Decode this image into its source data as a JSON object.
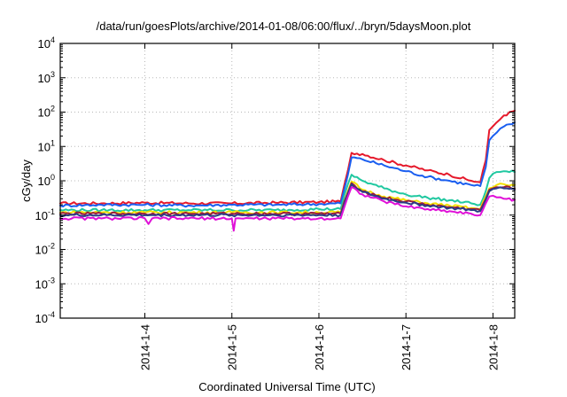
{
  "chart_data": {
    "type": "line",
    "title": "/data/run/goesPlots/archive/2014-01-08/06:00/flux/../bryn/5daysMoon.plot",
    "xlabel": "Coordinated Universal Time (UTC)",
    "ylabel": "cGy/day",
    "yscale": "log",
    "ylim": [
      0.0001,
      10000
    ],
    "xlim": [
      "2014-01-03T00:40",
      "2014-01-08T06:00"
    ],
    "y_ticks": [
      {
        "value": 0.0001,
        "base": "10",
        "exp": "-4"
      },
      {
        "value": 0.001,
        "base": "10",
        "exp": "-3"
      },
      {
        "value": 0.01,
        "base": "10",
        "exp": "-2"
      },
      {
        "value": 0.1,
        "base": "10",
        "exp": "-1"
      },
      {
        "value": 1,
        "base": "10",
        "exp": "0"
      },
      {
        "value": 10,
        "base": "10",
        "exp": "1"
      },
      {
        "value": 100,
        "base": "10",
        "exp": "2"
      },
      {
        "value": 1000,
        "base": "10",
        "exp": "3"
      },
      {
        "value": 10000,
        "base": "10",
        "exp": "4"
      }
    ],
    "x_ticks": [
      {
        "label": "2014-1-4",
        "value": "2014-01-04T00:00"
      },
      {
        "label": "2014-1-5",
        "value": "2014-01-05T00:00"
      },
      {
        "label": "2014-1-6",
        "value": "2014-01-06T00:00"
      },
      {
        "label": "2014-1-7",
        "value": "2014-01-07T00:00"
      },
      {
        "label": "2014-1-8",
        "value": "2014-01-08T00:00"
      }
    ],
    "grid": true,
    "legend": "none",
    "series": [
      {
        "color": "#e6192b",
        "points": [
          [
            "2014-01-03T00:40",
            0.22
          ],
          [
            "2014-01-03T12:00",
            0.22
          ],
          [
            "2014-01-04T00:00",
            0.23
          ],
          [
            "2014-01-04T12:00",
            0.22
          ],
          [
            "2014-01-05T00:00",
            0.22
          ],
          [
            "2014-01-05T12:00",
            0.23
          ],
          [
            "2014-01-06T00:00",
            0.24
          ],
          [
            "2014-01-06T06:00",
            0.25
          ],
          [
            "2014-01-06T08:00",
            2.0
          ],
          [
            "2014-01-06T09:00",
            6.5
          ],
          [
            "2014-01-06T12:00",
            6.0
          ],
          [
            "2014-01-06T18:00",
            4.0
          ],
          [
            "2014-01-07T00:00",
            2.8
          ],
          [
            "2014-01-07T06:00",
            2.0
          ],
          [
            "2014-01-07T12:00",
            1.5
          ],
          [
            "2014-01-07T18:00",
            1.0
          ],
          [
            "2014-01-07T20:30",
            0.9
          ],
          [
            "2014-01-07T22:00",
            4.0
          ],
          [
            "2014-01-07T23:00",
            30
          ],
          [
            "2014-01-08T01:00",
            50
          ],
          [
            "2014-01-08T03:00",
            80
          ],
          [
            "2014-01-08T06:00",
            110
          ]
        ]
      },
      {
        "color": "#1a5ef0",
        "points": [
          [
            "2014-01-03T00:40",
            0.19
          ],
          [
            "2014-01-03T12:00",
            0.2
          ],
          [
            "2014-01-04T00:00",
            0.2
          ],
          [
            "2014-01-04T12:00",
            0.19
          ],
          [
            "2014-01-05T00:00",
            0.2
          ],
          [
            "2014-01-05T12:00",
            0.2
          ],
          [
            "2014-01-06T00:00",
            0.21
          ],
          [
            "2014-01-06T06:00",
            0.22
          ],
          [
            "2014-01-06T08:00",
            1.5
          ],
          [
            "2014-01-06T09:00",
            4.8
          ],
          [
            "2014-01-06T12:00",
            4.2
          ],
          [
            "2014-01-06T18:00",
            2.8
          ],
          [
            "2014-01-07T00:00",
            1.9
          ],
          [
            "2014-01-07T06:00",
            1.3
          ],
          [
            "2014-01-07T12:00",
            1.0
          ],
          [
            "2014-01-07T18:00",
            0.75
          ],
          [
            "2014-01-07T20:30",
            0.7
          ],
          [
            "2014-01-07T22:00",
            2.5
          ],
          [
            "2014-01-07T23:00",
            15
          ],
          [
            "2014-01-08T01:00",
            25
          ],
          [
            "2014-01-08T03:00",
            38
          ],
          [
            "2014-01-08T06:00",
            50
          ]
        ]
      },
      {
        "color": "#1fc8a0",
        "points": [
          [
            "2014-01-03T00:40",
            0.14
          ],
          [
            "2014-01-03T12:00",
            0.14
          ],
          [
            "2014-01-04T00:00",
            0.14
          ],
          [
            "2014-01-04T12:00",
            0.14
          ],
          [
            "2014-01-05T00:00",
            0.14
          ],
          [
            "2014-01-05T12:00",
            0.14
          ],
          [
            "2014-01-06T00:00",
            0.15
          ],
          [
            "2014-01-06T06:00",
            0.15
          ],
          [
            "2014-01-06T08:00",
            0.8
          ],
          [
            "2014-01-06T09:00",
            1.5
          ],
          [
            "2014-01-06T12:00",
            1.0
          ],
          [
            "2014-01-06T18:00",
            0.6
          ],
          [
            "2014-01-07T00:00",
            0.4
          ],
          [
            "2014-01-07T06:00",
            0.32
          ],
          [
            "2014-01-07T12:00",
            0.27
          ],
          [
            "2014-01-07T18:00",
            0.22
          ],
          [
            "2014-01-07T20:30",
            0.2
          ],
          [
            "2014-01-07T22:00",
            0.5
          ],
          [
            "2014-01-07T23:00",
            1.2
          ],
          [
            "2014-01-08T01:00",
            1.8
          ],
          [
            "2014-01-08T03:00",
            1.9
          ],
          [
            "2014-01-08T06:00",
            1.8
          ]
        ]
      },
      {
        "color": "#f2e000",
        "points": [
          [
            "2014-01-03T00:40",
            0.12
          ],
          [
            "2014-01-03T12:00",
            0.12
          ],
          [
            "2014-01-04T00:00",
            0.12
          ],
          [
            "2014-01-04T12:00",
            0.12
          ],
          [
            "2014-01-05T00:00",
            0.12
          ],
          [
            "2014-01-05T12:00",
            0.12
          ],
          [
            "2014-01-06T00:00",
            0.12
          ],
          [
            "2014-01-06T06:00",
            0.12
          ],
          [
            "2014-01-06T08:00",
            0.5
          ],
          [
            "2014-01-06T09:00",
            0.95
          ],
          [
            "2014-01-06T12:00",
            0.55
          ],
          [
            "2014-01-06T18:00",
            0.35
          ],
          [
            "2014-01-07T00:00",
            0.27
          ],
          [
            "2014-01-07T06:00",
            0.22
          ],
          [
            "2014-01-07T12:00",
            0.19
          ],
          [
            "2014-01-07T18:00",
            0.16
          ],
          [
            "2014-01-07T20:30",
            0.15
          ],
          [
            "2014-01-07T22:00",
            0.35
          ],
          [
            "2014-01-07T23:00",
            0.6
          ],
          [
            "2014-01-08T01:00",
            0.75
          ],
          [
            "2014-01-08T03:00",
            0.8
          ],
          [
            "2014-01-08T06:00",
            0.75
          ]
        ]
      },
      {
        "color": "#9a1b3d",
        "points": [
          [
            "2014-01-03T00:40",
            0.11
          ],
          [
            "2014-01-03T12:00",
            0.11
          ],
          [
            "2014-01-04T00:00",
            0.11
          ],
          [
            "2014-01-04T12:00",
            0.11
          ],
          [
            "2014-01-05T00:00",
            0.11
          ],
          [
            "2014-01-05T12:00",
            0.11
          ],
          [
            "2014-01-06T00:00",
            0.11
          ],
          [
            "2014-01-06T06:00",
            0.11
          ],
          [
            "2014-01-06T08:00",
            0.45
          ],
          [
            "2014-01-06T09:00",
            0.85
          ],
          [
            "2014-01-06T12:00",
            0.5
          ],
          [
            "2014-01-06T18:00",
            0.32
          ],
          [
            "2014-01-07T00:00",
            0.25
          ],
          [
            "2014-01-07T06:00",
            0.2
          ],
          [
            "2014-01-07T12:00",
            0.17
          ],
          [
            "2014-01-07T18:00",
            0.15
          ],
          [
            "2014-01-07T20:30",
            0.14
          ],
          [
            "2014-01-07T22:00",
            0.3
          ],
          [
            "2014-01-07T23:00",
            0.55
          ],
          [
            "2014-01-08T01:00",
            0.65
          ],
          [
            "2014-01-08T03:00",
            0.65
          ],
          [
            "2014-01-08T06:00",
            0.6
          ]
        ]
      },
      {
        "color": "#2a3d86",
        "points": [
          [
            "2014-01-03T00:40",
            0.1
          ],
          [
            "2014-01-03T12:00",
            0.1
          ],
          [
            "2014-01-04T00:00",
            0.1
          ],
          [
            "2014-01-04T12:00",
            0.1
          ],
          [
            "2014-01-05T00:00",
            0.1
          ],
          [
            "2014-01-05T12:00",
            0.1
          ],
          [
            "2014-01-06T00:00",
            0.1
          ],
          [
            "2014-01-06T06:00",
            0.1
          ],
          [
            "2014-01-06T08:00",
            0.42
          ],
          [
            "2014-01-06T09:00",
            0.8
          ],
          [
            "2014-01-06T12:00",
            0.47
          ],
          [
            "2014-01-06T18:00",
            0.3
          ],
          [
            "2014-01-07T00:00",
            0.23
          ],
          [
            "2014-01-07T06:00",
            0.19
          ],
          [
            "2014-01-07T12:00",
            0.16
          ],
          [
            "2014-01-07T18:00",
            0.14
          ],
          [
            "2014-01-07T20:30",
            0.13
          ],
          [
            "2014-01-07T22:00",
            0.28
          ],
          [
            "2014-01-07T23:00",
            0.5
          ],
          [
            "2014-01-08T01:00",
            0.6
          ],
          [
            "2014-01-08T03:00",
            0.6
          ],
          [
            "2014-01-08T06:00",
            0.55
          ]
        ]
      },
      {
        "color": "#e010d8",
        "points": [
          [
            "2014-01-03T00:40",
            0.08
          ],
          [
            "2014-01-03T12:00",
            0.08
          ],
          [
            "2014-01-04T00:00",
            0.08
          ],
          [
            "2014-01-04T01:00",
            0.055
          ],
          [
            "2014-01-04T02:00",
            0.08
          ],
          [
            "2014-01-04T12:00",
            0.08
          ],
          [
            "2014-01-05T00:00",
            0.08
          ],
          [
            "2014-01-05T00:30",
            0.035
          ],
          [
            "2014-01-05T01:00",
            0.08
          ],
          [
            "2014-01-05T12:00",
            0.08
          ],
          [
            "2014-01-06T00:00",
            0.08
          ],
          [
            "2014-01-06T06:00",
            0.08
          ],
          [
            "2014-01-06T08:00",
            0.35
          ],
          [
            "2014-01-06T09:00",
            0.65
          ],
          [
            "2014-01-06T12:00",
            0.4
          ],
          [
            "2014-01-06T18:00",
            0.25
          ],
          [
            "2014-01-07T00:00",
            0.18
          ],
          [
            "2014-01-07T06:00",
            0.15
          ],
          [
            "2014-01-07T12:00",
            0.13
          ],
          [
            "2014-01-07T18:00",
            0.11
          ],
          [
            "2014-01-07T20:30",
            0.1
          ],
          [
            "2014-01-07T22:00",
            0.22
          ],
          [
            "2014-01-07T23:00",
            0.35
          ],
          [
            "2014-01-08T01:00",
            0.33
          ],
          [
            "2014-01-08T03:00",
            0.3
          ],
          [
            "2014-01-08T06:00",
            0.28
          ]
        ]
      }
    ]
  }
}
